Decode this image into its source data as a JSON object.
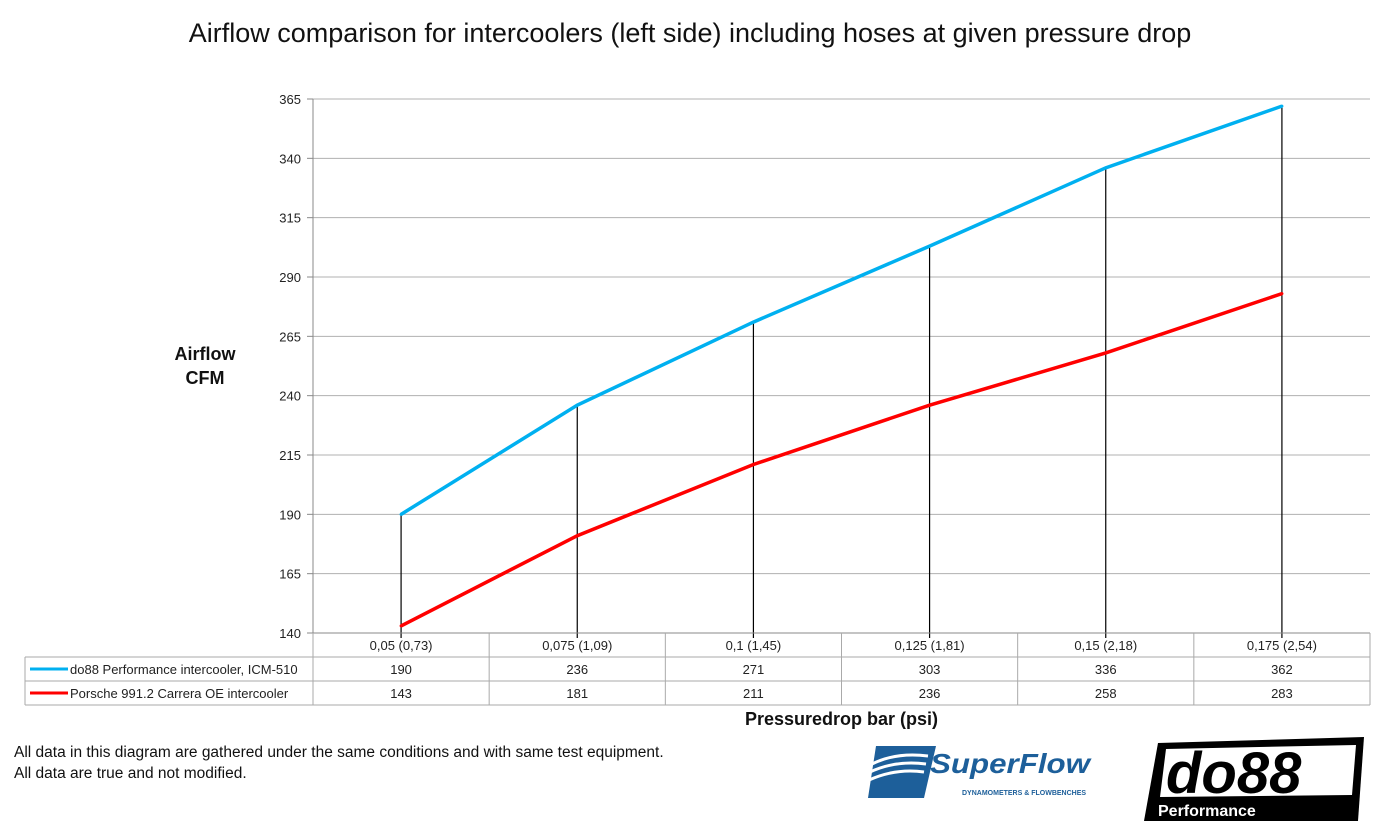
{
  "chart_data": {
    "type": "line",
    "title": "Airflow comparison for intercoolers (left side) including hoses at given pressure drop",
    "ylabel": "Airflow CFM",
    "xlabel": "Pressuredrop bar (psi)",
    "categories": [
      "0,05 (0,73)",
      "0,075 (1,09)",
      "0,1 (1,45)",
      "0,125 (1,81)",
      "0,15 (2,18)",
      "0,175 (2,54)"
    ],
    "ylim": [
      140,
      365
    ],
    "yticks": [
      140,
      165,
      190,
      215,
      240,
      265,
      290,
      315,
      340,
      365
    ],
    "grid": true,
    "drop_lines": true,
    "legend": "data-table",
    "series": [
      {
        "name": "do88 Performance intercooler, ICM-510",
        "color": "#00b0f0",
        "values": [
          190,
          236,
          271,
          303,
          336,
          362
        ]
      },
      {
        "name": "Porsche 991.2 Carrera OE intercooler",
        "color": "#ff0000",
        "values": [
          143,
          181,
          211,
          236,
          258,
          283
        ]
      }
    ]
  },
  "notes": [
    "All data in this diagram are gathered under the same conditions and with same test equipment.",
    "All data are true and not modified."
  ],
  "logos": {
    "superflow": "SuperFlow",
    "superflow_tagline": "DYNAMOMETERS & FLOWBENCHES",
    "do88": "do88",
    "do88_sub": "Performance"
  }
}
